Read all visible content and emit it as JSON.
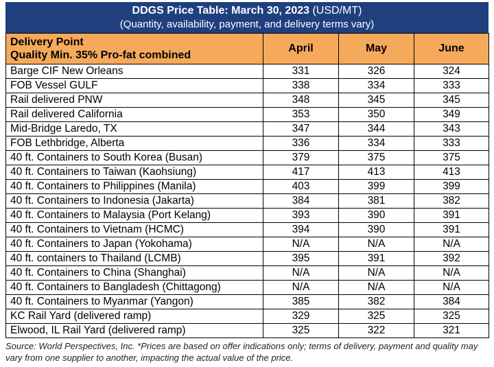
{
  "title": {
    "bold": "DDGS Price Table: March 30, 2023",
    "unit": " (USD/MT)",
    "subtitle": "(Quantity, availability, payment, and delivery terms vary)"
  },
  "header": {
    "col1_line1": "Delivery Point",
    "col1_line2": "Quality Min. 35% Pro-fat combined",
    "months": [
      "April",
      "May",
      "June"
    ]
  },
  "colors": {
    "title_bg": "#1f3f7f",
    "header_bg": "#f5a95b"
  },
  "rows": [
    {
      "name": "Barge CIF New Orleans",
      "april": "331",
      "may": "326",
      "june": "324"
    },
    {
      "name": "FOB Vessel GULF",
      "april": "338",
      "may": "334",
      "june": "333"
    },
    {
      "name": "Rail delivered PNW",
      "april": "348",
      "may": "345",
      "june": "345"
    },
    {
      "name": "Rail delivered California",
      "april": "353",
      "may": "350",
      "june": "349"
    },
    {
      "name": "Mid-Bridge Laredo, TX",
      "april": "347",
      "may": "344",
      "june": "343"
    },
    {
      "name": "FOB Lethbridge, Alberta",
      "april": "336",
      "may": "334",
      "june": "333"
    },
    {
      "name": "40 ft. Containers to South Korea (Busan)",
      "april": "379",
      "may": "375",
      "june": "375"
    },
    {
      "name": "40 ft. Containers to Taiwan (Kaohsiung)",
      "april": "417",
      "may": "413",
      "june": "413"
    },
    {
      "name": "40 ft. Containers to Philippines (Manila)",
      "april": "403",
      "may": "399",
      "june": "399"
    },
    {
      "name": "40 ft. Containers to Indonesia (Jakarta)",
      "april": "384",
      "may": "381",
      "june": "382"
    },
    {
      "name": "40 ft. Containers to Malaysia (Port Kelang)",
      "april": "393",
      "may": "390",
      "june": "391"
    },
    {
      "name": "40 ft. Containers to Vietnam (HCMC)",
      "april": "394",
      "may": "390",
      "june": "391"
    },
    {
      "name": "40 ft. Containers to Japan (Yokohama)",
      "april": "N/A",
      "may": "N/A",
      "june": "N/A"
    },
    {
      "name": "40 ft. containers to Thailand (LCMB)",
      "april": "395",
      "may": "391",
      "june": "392"
    },
    {
      "name": "40 ft. Containers to China (Shanghai)",
      "april": "N/A",
      "may": "N/A",
      "june": "N/A"
    },
    {
      "name": "40 ft. Containers to Bangladesh (Chittagong)",
      "april": "N/A",
      "may": "N/A",
      "june": "N/A"
    },
    {
      "name": "40 ft. Containers to Myanmar (Yangon)",
      "april": "385",
      "may": "382",
      "june": "384"
    },
    {
      "name": "KC Rail Yard (delivered ramp)",
      "april": "329",
      "may": "325",
      "june": "325"
    },
    {
      "name": "Elwood, IL Rail Yard (delivered ramp)",
      "april": "325",
      "may": "322",
      "june": "321"
    }
  ],
  "source": "Source: World Perspectives, Inc. *Prices are based on offer indications only; terms of delivery, payment and quality may vary from one supplier to another, impacting the actual value of the price."
}
